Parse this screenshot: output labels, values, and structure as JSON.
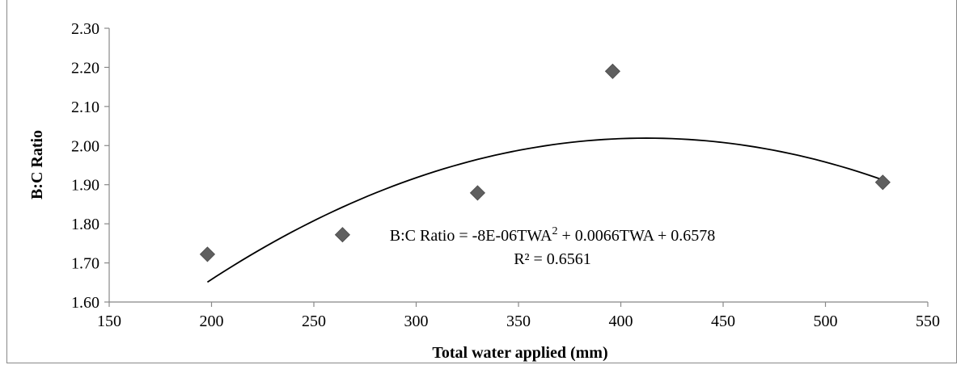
{
  "chart_data": {
    "type": "scatter",
    "xlabel": "Total water applied (mm)",
    "ylabel": "B:C Ratio",
    "xlim": [
      150,
      550
    ],
    "ylim": [
      1.6,
      2.3
    ],
    "x_ticks": [
      "150",
      "200",
      "250",
      "300",
      "350",
      "400",
      "450",
      "500",
      "550"
    ],
    "y_ticks": [
      "1.60",
      "1.70",
      "1.80",
      "1.90",
      "2.00",
      "2.10",
      "2.20",
      "2.30"
    ],
    "points": [
      {
        "x": 198,
        "y": 1.722
      },
      {
        "x": 264,
        "y": 1.772
      },
      {
        "x": 330,
        "y": 1.879
      },
      {
        "x": 396,
        "y": 2.19
      },
      {
        "x": 528,
        "y": 1.906
      }
    ],
    "trendline": {
      "type": "polynomial",
      "a": -8e-06,
      "b": 0.0066,
      "c": 0.6578,
      "x_range": [
        198,
        528
      ]
    },
    "annotation": {
      "equation_prefix": "B:C Ratio = -8E-06TWA",
      "equation_sup": "2",
      "equation_suffix": " + 0.0066TWA + 0.6578",
      "r2": "R² = 0.6561"
    },
    "marker_color": "#5f5f5f",
    "line_color": "#000000"
  }
}
